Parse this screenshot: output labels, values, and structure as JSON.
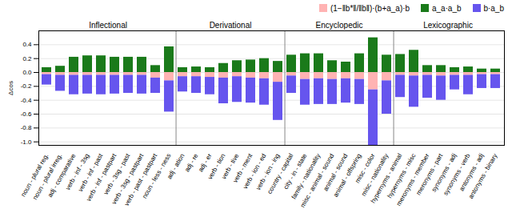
{
  "chart_data": {
    "type": "bar",
    "stacked": true,
    "categories": [
      "noun - plural reg.",
      "noun - plural irreg.",
      "adj - comparative",
      "verb - inf - 3sg",
      "verb - inf - past",
      "verb - inf - pastpart",
      "verb - 3sg - past",
      "verb - 3sg - pastpart",
      "verb - past - pastpart",
      "noun - less - ness",
      "adj - ation",
      "adj - re",
      "adj - er",
      "verb - tion",
      "verb - tive",
      "verb - ment",
      "verb - ion - ed",
      "verb - ion - ing",
      "country - capital",
      "city - in - state",
      "family - nationality",
      "misc - animal - sound",
      "animal - sound",
      "animal - offspring",
      "misc - color",
      "misc - nationality",
      "hypernyms - animal",
      "hypernyms - misc",
      "meronyms - member",
      "meronyms - part",
      "synonyms - adj",
      "synonyms - verb",
      "antonyms - adj",
      "antonyms - binary"
    ],
    "series": [
      {
        "name": "(1−‖b*‖/‖b‖)⋅(b+a_a)⋅b",
        "color": "#ffb3b3",
        "values": [
          -0.03,
          -0.04,
          -0.04,
          -0.04,
          -0.04,
          -0.04,
          -0.04,
          -0.04,
          -0.08,
          -0.12,
          -0.06,
          -0.06,
          -0.07,
          -0.08,
          -0.06,
          -0.08,
          -0.09,
          -0.14,
          -0.05,
          -0.1,
          -0.09,
          -0.1,
          -0.09,
          -0.1,
          -0.25,
          -0.12,
          -0.04,
          -0.05,
          -0.04,
          -0.05,
          -0.04,
          -0.04,
          -0.03,
          -0.03
        ]
      },
      {
        "name": "a_a⋅a_b",
        "color": "#1a7a1a",
        "values": [
          0.07,
          0.09,
          0.22,
          0.24,
          0.24,
          0.22,
          0.22,
          0.22,
          0.1,
          0.37,
          0.07,
          0.08,
          0.07,
          0.13,
          0.17,
          0.18,
          0.2,
          0.16,
          0.25,
          0.27,
          0.27,
          0.17,
          0.15,
          0.27,
          0.5,
          0.25,
          0.26,
          0.32,
          0.1,
          0.1,
          0.07,
          0.08,
          0.05,
          0.05
        ]
      },
      {
        "name": "b⋅a_b",
        "color": "#6655ee",
        "values": [
          -0.15,
          -0.23,
          -0.28,
          -0.27,
          -0.28,
          -0.27,
          -0.26,
          -0.27,
          -0.22,
          -0.45,
          -0.22,
          -0.24,
          -0.25,
          -0.37,
          -0.37,
          -0.36,
          -0.38,
          -0.55,
          -0.25,
          -0.37,
          -0.37,
          -0.36,
          -0.35,
          -0.36,
          -0.8,
          -0.48,
          -0.32,
          -0.45,
          -0.33,
          -0.35,
          -0.21,
          -0.28,
          -0.2,
          -0.2
        ]
      }
    ],
    "ylabel": "Δcos",
    "ylim": [
      -1.05,
      0.6
    ],
    "yticks": [
      {
        "value": -1,
        "label": "-1.0"
      },
      -0.8,
      -0.6,
      -0.4,
      -0.2,
      {
        "value": 0,
        "label": "0.0"
      },
      0.2,
      0.4
    ],
    "grid": true,
    "legend": "upper right",
    "annotations": [
      {
        "text": "Inflectional",
        "from": "noun - plural reg.",
        "to": "noun - less - ness"
      },
      {
        "text": "Derivational",
        "from": "adj - ation",
        "to": "verb - ion - ing"
      },
      {
        "text": "Encyclopedic",
        "from": "country - capital",
        "to": "misc - nationality"
      },
      {
        "text": "Lexicographic",
        "from": "hypernyms - animal",
        "to": "antonyms - binary"
      }
    ]
  }
}
